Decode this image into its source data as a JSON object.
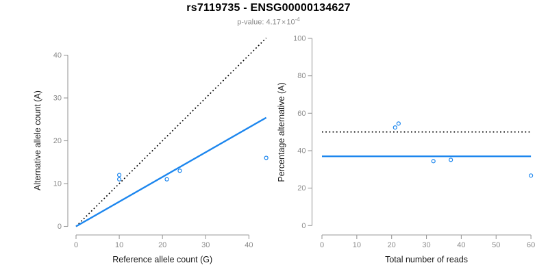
{
  "header": {
    "title": "rs7119735 - ENSG00000134627",
    "p_value": {
      "label": "p-value:",
      "mantissa": "4.17",
      "times": "×",
      "base": "10",
      "exponent": "-4"
    }
  },
  "colors": {
    "accent_blue": "#1C86EE",
    "line_black": "#000000",
    "axis_gray": "#9a9a9a",
    "tick_label_gray": "#8a8a8a",
    "subtitle_gray": "#8a8a8a"
  },
  "chart_data": [
    {
      "id": "allele-counts-scatter",
      "type": "scatter",
      "xlabel": "Reference allele count (G)",
      "ylabel": "Alternative allele count (A)",
      "xticks": [
        0,
        10,
        20,
        30,
        40
      ],
      "yticks": [
        0,
        10,
        20,
        30,
        40
      ],
      "xlim": [
        0,
        44
      ],
      "ylim": [
        0,
        44
      ],
      "grid": false,
      "points": [
        [
          10,
          12
        ],
        [
          10,
          11
        ],
        [
          21,
          11
        ],
        [
          24,
          13
        ],
        [
          44,
          16
        ]
      ],
      "lines": [
        {
          "name": "identity-line",
          "style": "dotted",
          "color_key": "line_black",
          "from": [
            0,
            0
          ],
          "to": [
            44,
            44
          ]
        },
        {
          "name": "regression-line",
          "style": "solid",
          "color_key": "accent_blue",
          "from": [
            0,
            0
          ],
          "to": [
            44,
            25.4
          ]
        }
      ]
    },
    {
      "id": "percentage-alternative-scatter",
      "type": "scatter",
      "xlabel": "Total number of reads",
      "ylabel": "Percentage alternative (A)",
      "xticks": [
        0,
        10,
        20,
        30,
        40,
        50,
        60
      ],
      "yticks": [
        0,
        20,
        40,
        60,
        80,
        100
      ],
      "xlim": [
        0,
        60
      ],
      "ylim": [
        0,
        100
      ],
      "grid": false,
      "points": [
        [
          21,
          52.4
        ],
        [
          22,
          54.5
        ],
        [
          32,
          34.4
        ],
        [
          37,
          35.1
        ],
        [
          60,
          26.7
        ]
      ],
      "lines": [
        {
          "name": "expected-50-percent-line",
          "style": "dotted",
          "color_key": "line_black",
          "from": [
            0,
            50
          ],
          "to": [
            60,
            50
          ]
        },
        {
          "name": "mean-percentage-line",
          "style": "solid",
          "color_key": "accent_blue",
          "from": [
            0,
            37
          ],
          "to": [
            60,
            37
          ]
        }
      ]
    }
  ]
}
